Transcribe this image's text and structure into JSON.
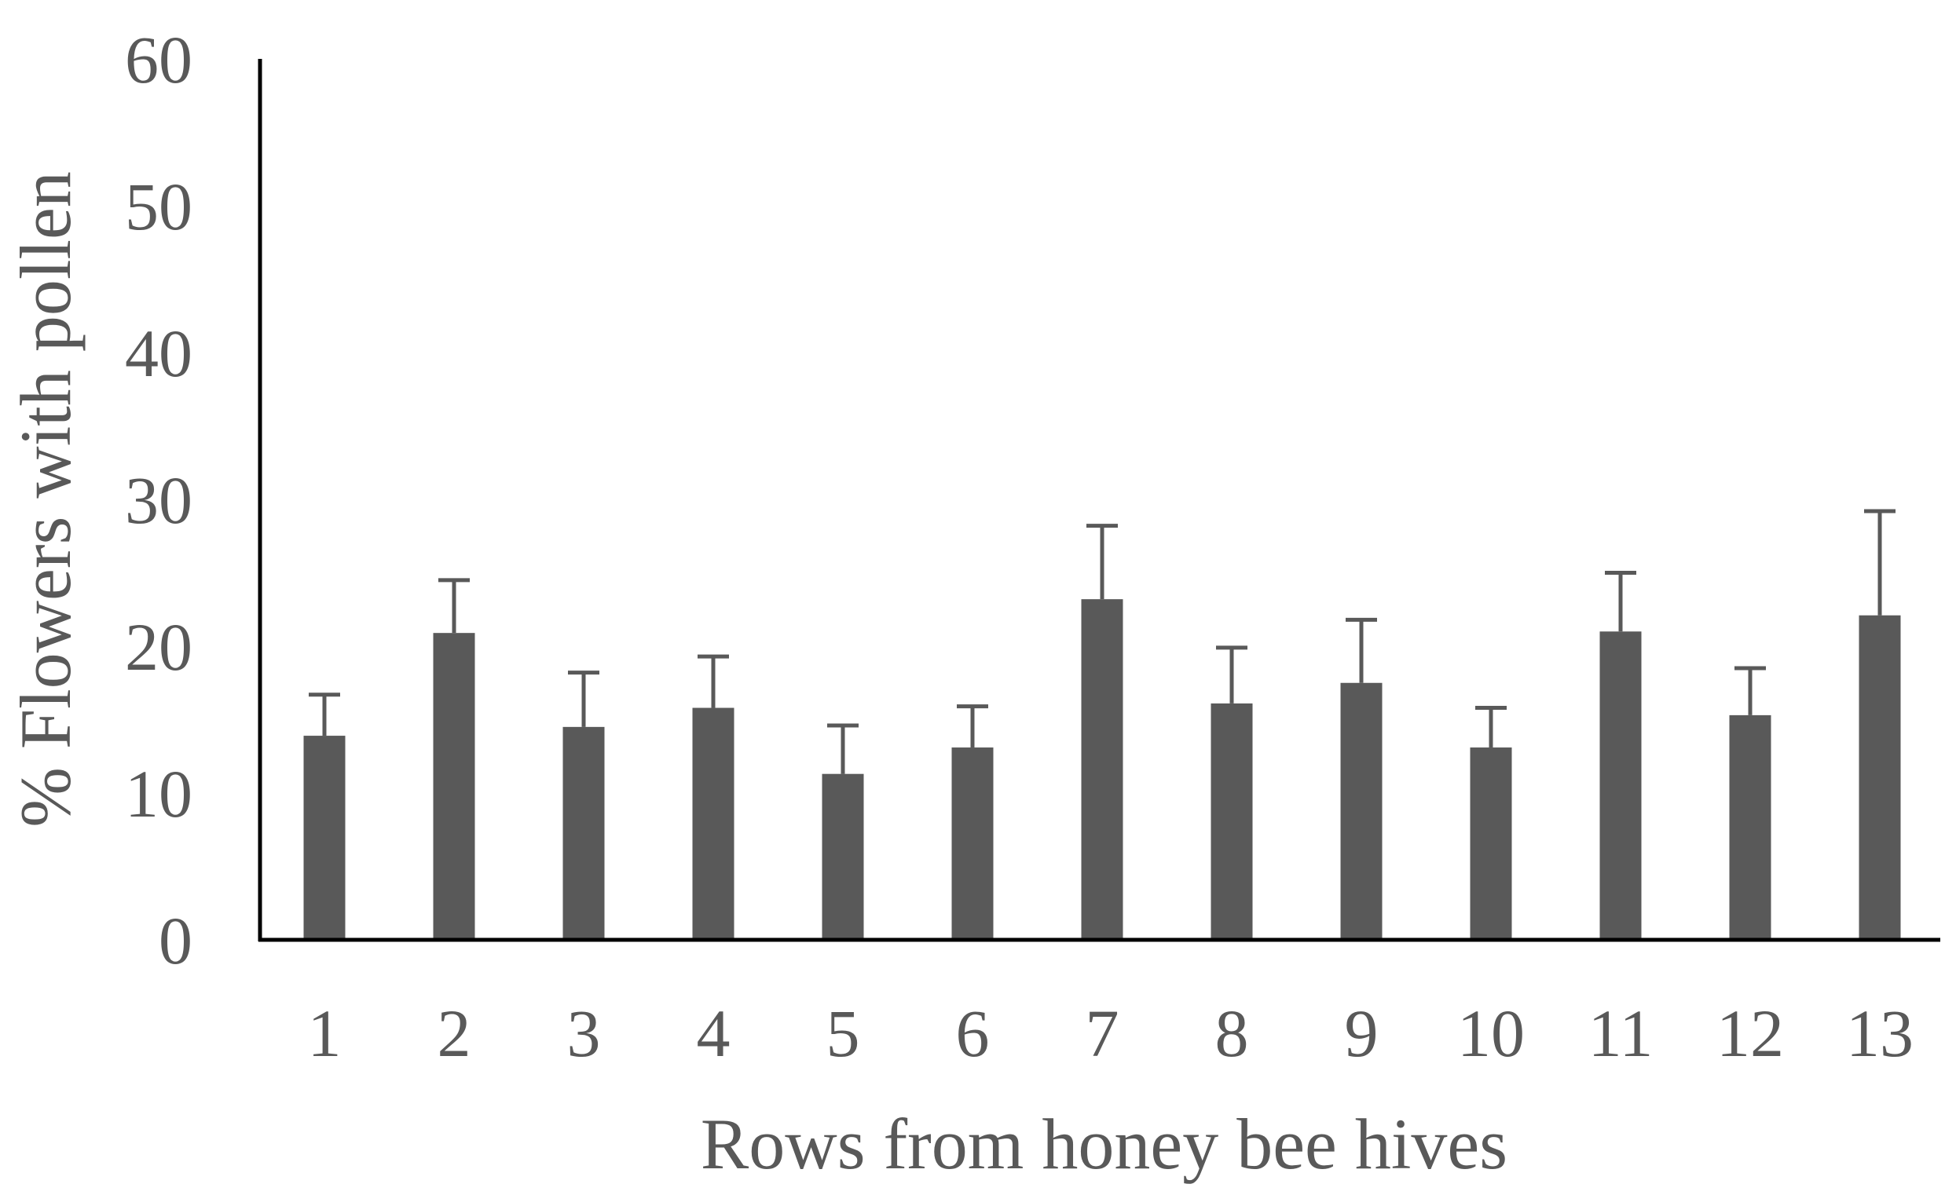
{
  "chart_data": {
    "type": "bar",
    "title": "",
    "xlabel": "Rows from honey bee hives",
    "ylabel": "% Flowers with pollen",
    "categories": [
      "1",
      "2",
      "3",
      "4",
      "5",
      "6",
      "7",
      "8",
      "9",
      "10",
      "11",
      "12",
      "13"
    ],
    "series": [
      {
        "values": [
          13.9,
          20.9,
          14.5,
          15.8,
          11.3,
          13.1,
          23.2,
          16.1,
          17.5,
          13.1,
          21.0,
          15.3,
          22.1
        ],
        "error_upper": [
          16.7,
          24.5,
          18.2,
          19.3,
          14.6,
          15.9,
          28.2,
          19.9,
          21.8,
          15.8,
          25.0,
          18.5,
          29.2
        ]
      }
    ],
    "ylim": [
      0,
      60
    ],
    "yticks": [
      0,
      10,
      20,
      30,
      40,
      50,
      60
    ],
    "grid": false,
    "legend": "none",
    "colors": {
      "bar": "#595959",
      "error_bar": "#595959",
      "axis": "#000000",
      "text": "#595959"
    }
  }
}
